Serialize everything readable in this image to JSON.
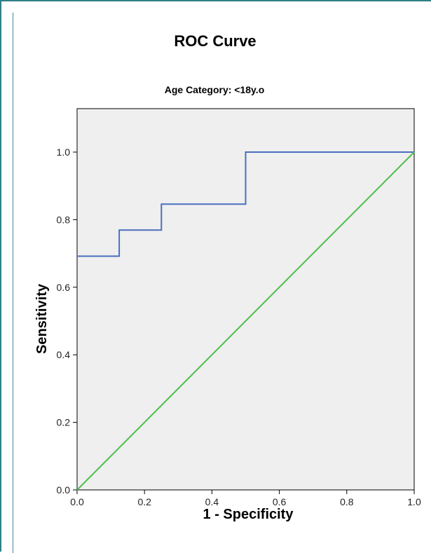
{
  "chart_data": {
    "type": "line",
    "title": "ROC Curve",
    "subtitle": "Age Category: <18y.o",
    "xlabel": "1 - Specificity",
    "ylabel": "Sensitivity",
    "xlim": [
      0,
      1
    ],
    "ylim": [
      0,
      1.1
    ],
    "x_ticks": [
      "0.0",
      "0.2",
      "0.4",
      "0.6",
      "0.8",
      "1.0"
    ],
    "y_ticks": [
      "0.0",
      "0.2",
      "0.4",
      "0.6",
      "0.8",
      "1.0"
    ],
    "grid": false,
    "series": [
      {
        "color": "#4a6fbf",
        "style": "step",
        "x": [
          0.0,
          0.125,
          0.125,
          0.25,
          0.25,
          0.5,
          0.5,
          1.0
        ],
        "y": [
          0.692,
          0.692,
          0.769,
          0.769,
          0.846,
          0.846,
          1.0,
          1.0
        ]
      },
      {
        "color": "#4cbf4c",
        "style": "line",
        "x": [
          0.0,
          1.0
        ],
        "y": [
          0.0,
          1.0
        ]
      }
    ],
    "colors": {
      "plot_background": "#efefef",
      "frame": "#2f7f86"
    }
  }
}
